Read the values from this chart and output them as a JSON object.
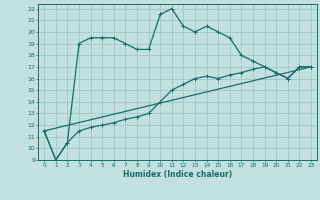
{
  "xlabel": "Humidex (Indice chaleur)",
  "bg_color": "#c2e0e0",
  "grid_color": "#9fc8c8",
  "line_color": "#1a6b6b",
  "xlim": [
    -0.5,
    23.5
  ],
  "ylim": [
    9,
    22.4
  ],
  "yticks": [
    9,
    10,
    11,
    12,
    13,
    14,
    15,
    16,
    17,
    18,
    19,
    20,
    21,
    22
  ],
  "xticks": [
    0,
    1,
    2,
    3,
    4,
    5,
    6,
    7,
    8,
    9,
    10,
    11,
    12,
    13,
    14,
    15,
    16,
    17,
    18,
    19,
    20,
    21,
    22,
    23
  ],
  "series1_x": [
    0,
    1,
    2,
    3,
    4,
    5,
    6,
    7,
    8,
    9,
    10,
    11,
    12,
    13,
    14,
    15,
    16,
    17,
    18,
    19,
    20,
    21,
    22,
    23
  ],
  "series1_y": [
    11.5,
    9.0,
    10.5,
    19.0,
    19.5,
    19.5,
    19.5,
    19.0,
    18.5,
    18.5,
    21.5,
    22.0,
    20.5,
    20.0,
    20.5,
    20.0,
    19.5,
    18.0,
    17.5,
    17.0,
    16.5,
    16.0,
    17.0,
    17.0
  ],
  "series2_x": [
    0,
    1,
    2,
    3,
    4,
    5,
    6,
    7,
    8,
    9,
    10,
    11,
    12,
    13,
    14,
    15,
    16,
    17,
    18,
    19,
    20,
    21,
    22,
    23
  ],
  "series2_y": [
    11.5,
    9.0,
    10.5,
    11.5,
    11.8,
    12.0,
    12.2,
    12.5,
    12.7,
    13.0,
    14.0,
    15.0,
    15.5,
    16.0,
    16.2,
    16.0,
    16.3,
    16.5,
    16.8,
    17.0,
    16.5,
    16.0,
    17.0,
    17.0
  ],
  "series3_x": [
    0,
    23
  ],
  "series3_y": [
    11.5,
    17.0
  ]
}
